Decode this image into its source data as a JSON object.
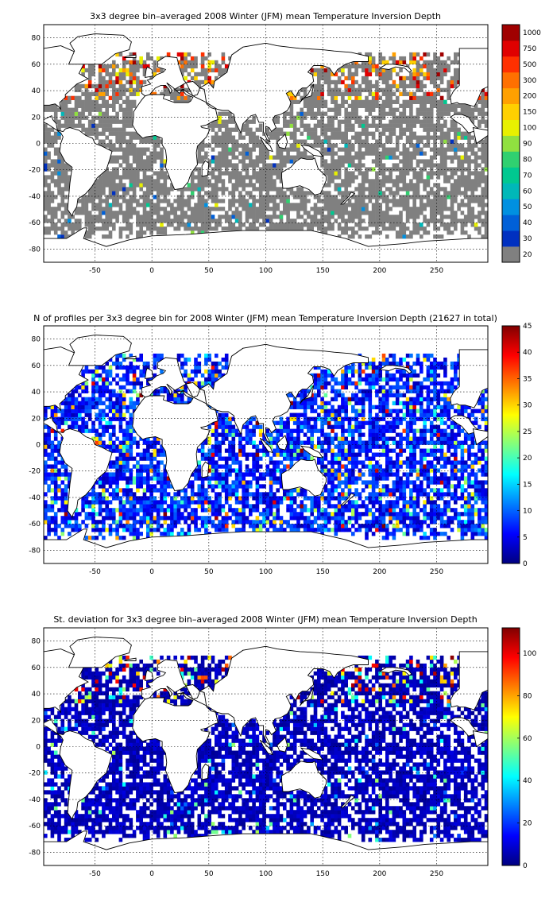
{
  "chart_data": [
    {
      "type": "heatmap",
      "title": "3x3 degree bin–averaged 2008 Winter (JFM) mean Temperature Inversion Depth",
      "xlim": [
        -95,
        295
      ],
      "ylim": [
        -90,
        90
      ],
      "x_ticks": [
        "-50",
        "0",
        "50",
        "100",
        "150",
        "200",
        "250"
      ],
      "y_ticks": [
        "80",
        "60",
        "40",
        "20",
        "0",
        "-20",
        "-40",
        "-60",
        "-80"
      ],
      "grid": true,
      "colorbar": {
        "scale": "categorical",
        "labels": [
          "20",
          "30",
          "40",
          "50",
          "60",
          "70",
          "80",
          "90",
          "100",
          "150",
          "200",
          "300",
          "500",
          "750",
          "1000"
        ],
        "colors": [
          "#808080",
          "#0030c0",
          "#0060d8",
          "#0090e0",
          "#00b8b8",
          "#00c890",
          "#30d070",
          "#90e040",
          "#e8f000",
          "#ffd000",
          "#ffa000",
          "#ff7000",
          "#ff3000",
          "#e00000",
          "#a00000"
        ]
      }
    },
    {
      "type": "heatmap",
      "title": "N of profiles per 3x3 degree bin for 2008 Winter (JFM) mean Temperature Inversion Depth  (21627 in total)",
      "xlim": [
        -95,
        295
      ],
      "ylim": [
        -90,
        90
      ],
      "x_ticks": [
        "-50",
        "0",
        "50",
        "100",
        "150",
        "200",
        "250"
      ],
      "y_ticks": [
        "80",
        "60",
        "40",
        "20",
        "0",
        "-20",
        "-40",
        "-60",
        "-80"
      ],
      "grid": true,
      "colorbar": {
        "scale": "jet",
        "range": [
          0,
          45
        ],
        "labels": [
          "0",
          "5",
          "10",
          "15",
          "20",
          "25",
          "30",
          "35",
          "40",
          "45"
        ]
      }
    },
    {
      "type": "heatmap",
      "title": "St. deviation for 3x3 degree bin–averaged 2008 Winter (JFM) mean Temperature Inversion Depth",
      "xlim": [
        -95,
        295
      ],
      "ylim": [
        -90,
        90
      ],
      "x_ticks": [
        "-50",
        "0",
        "50",
        "100",
        "150",
        "200",
        "250"
      ],
      "y_ticks": [
        "80",
        "60",
        "40",
        "20",
        "0",
        "-20",
        "-40",
        "-60",
        "-80"
      ],
      "grid": true,
      "colorbar": {
        "scale": "jet",
        "range": [
          0,
          112
        ],
        "labels": [
          "0",
          "20",
          "40",
          "60",
          "80",
          "100"
        ]
      }
    }
  ]
}
